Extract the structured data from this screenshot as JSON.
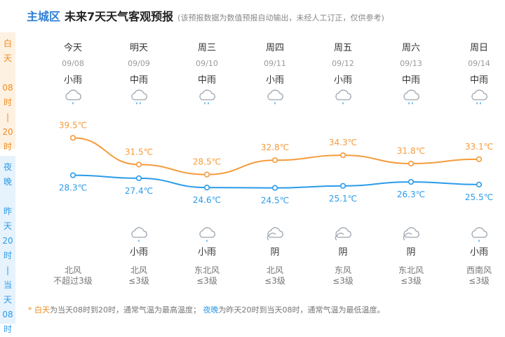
{
  "header": {
    "district": "主城区",
    "title": "未来7天天气客观预报",
    "note": "(该预报数据为数值预报自动输出，未经人工订正，仅供参考)"
  },
  "side": {
    "day": [
      "白",
      "天",
      "",
      "08",
      "时",
      "|",
      "20",
      "时"
    ],
    "night": [
      "夜",
      "晚",
      "",
      "昨",
      "天",
      "20",
      "时",
      "|",
      "当",
      "天",
      "08",
      "时"
    ]
  },
  "colors": {
    "day_line": "#f59b3c",
    "night_line": "#2c9be8",
    "icon_stroke": "#9aa3ad",
    "rain_drop": "#3aa0e8"
  },
  "days": [
    {
      "day": "今天",
      "date": "09/08",
      "day_weather": "小雨",
      "day_icon": "light-rain-icon",
      "night_weather": "",
      "night_icon": "none",
      "wind_dir": "北风",
      "wind_level": "不超过3级"
    },
    {
      "day": "明天",
      "date": "09/09",
      "day_weather": "中雨",
      "day_icon": "moderate-rain-icon",
      "night_weather": "小雨",
      "night_icon": "light-rain-icon",
      "wind_dir": "北风",
      "wind_level": "≤3级"
    },
    {
      "day": "周三",
      "date": "09/10",
      "day_weather": "中雨",
      "day_icon": "moderate-rain-icon",
      "night_weather": "小雨",
      "night_icon": "light-rain-icon",
      "wind_dir": "东北风",
      "wind_level": "≤3级"
    },
    {
      "day": "周四",
      "date": "09/11",
      "day_weather": "小雨",
      "day_icon": "light-rain-icon",
      "night_weather": "阴",
      "night_icon": "overcast-icon",
      "wind_dir": "北风",
      "wind_level": "≤3级"
    },
    {
      "day": "周五",
      "date": "09/12",
      "day_weather": "小雨",
      "day_icon": "light-rain-icon",
      "night_weather": "阴",
      "night_icon": "overcast-icon",
      "wind_dir": "东风",
      "wind_level": "≤3级"
    },
    {
      "day": "周六",
      "date": "09/13",
      "day_weather": "中雨",
      "day_icon": "moderate-rain-icon",
      "night_weather": "阴",
      "night_icon": "overcast-icon",
      "wind_dir": "东北风",
      "wind_level": "≤3级"
    },
    {
      "day": "周日",
      "date": "09/14",
      "day_weather": "中雨",
      "day_icon": "moderate-rain-icon",
      "night_weather": "小雨",
      "night_icon": "light-rain-icon",
      "wind_dir": "西南风",
      "wind_level": "≤3级"
    }
  ],
  "chart_data": {
    "type": "line",
    "categories": [
      "09/08",
      "09/09",
      "09/10",
      "09/11",
      "09/12",
      "09/13",
      "09/14"
    ],
    "series": [
      {
        "values": [
          39.5,
          31.5,
          28.5,
          32.8,
          34.3,
          31.8,
          33.1
        ],
        "labels": [
          "39.5℃",
          "31.5℃",
          "28.5℃",
          "32.8℃",
          "34.3℃",
          "31.8℃",
          "33.1℃"
        ]
      },
      {
        "values": [
          28.3,
          27.4,
          24.6,
          24.5,
          25.1,
          26.3,
          25.5
        ],
        "labels": [
          "28.3℃",
          "27.4℃",
          "24.6℃",
          "24.5℃",
          "25.1℃",
          "26.3℃",
          "25.5℃"
        ]
      }
    ],
    "title": "",
    "xlabel": "",
    "ylabel": "",
    "ylim": [
      24,
      40
    ],
    "grid": false,
    "smooth": true
  },
  "footer": {
    "star": "*",
    "day_label": "白天",
    "day_text": "为当天08时到20时，通常气温为最高温度；",
    "night_label": "夜晚",
    "night_text": "为昨天20时到当天08时，通常气温为最低温度。"
  }
}
